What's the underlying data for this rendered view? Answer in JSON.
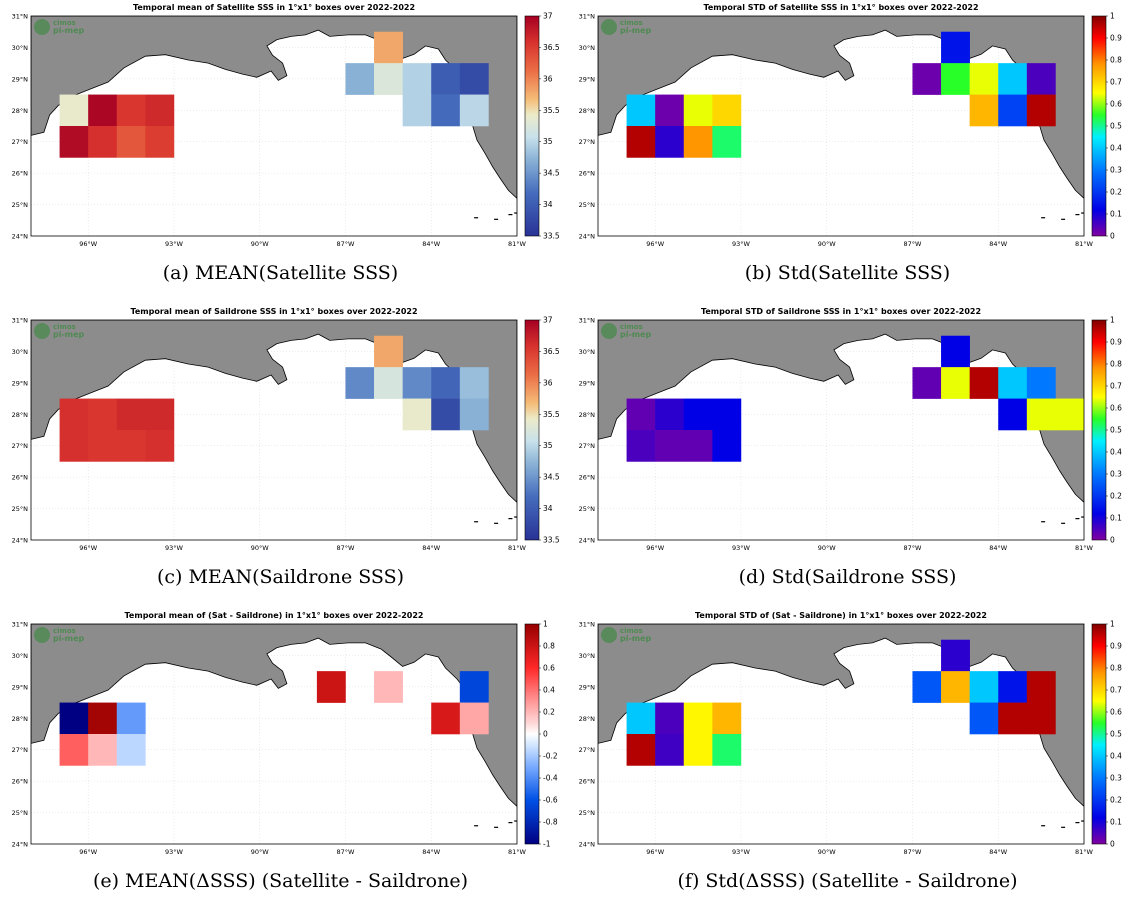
{
  "figure": {
    "logo_line1": "cimos",
    "logo_line2": "pi-mep"
  },
  "chart_data": [
    {
      "type": "heatmap",
      "panel": "a",
      "title": "Temporal mean of Satellite SSS in 1°x1° boxes over 2022-2022",
      "caption": "(a) MEAN(Satellite SSS)",
      "colormap": "diverging",
      "clim": [
        33.5,
        37
      ],
      "colorbar_ticks": [
        "37",
        "36.5",
        "36",
        "35.5",
        "35",
        "34.5",
        "34",
        "33.5"
      ],
      "x_ticks": [
        "96°W",
        "93°W",
        "90°W",
        "87°W",
        "84°W",
        "81°W"
      ],
      "y_ticks": [
        "31°N",
        "30°N",
        "29°N",
        "28°N",
        "27°N",
        "26°N",
        "25°N",
        "24°N"
      ],
      "xlim": [
        -98,
        -81
      ],
      "ylim": [
        24,
        31
      ],
      "grid": true,
      "boxes": [
        {
          "lon": -97,
          "lat": 27.5,
          "value": 35.4
        },
        {
          "lon": -96,
          "lat": 27.5,
          "value": 36.95
        },
        {
          "lon": -95,
          "lat": 27.5,
          "value": 36.55
        },
        {
          "lon": -94,
          "lat": 27.5,
          "value": 36.65
        },
        {
          "lon": -97,
          "lat": 26.5,
          "value": 36.9
        },
        {
          "lon": -96,
          "lat": 26.5,
          "value": 36.6
        },
        {
          "lon": -95,
          "lat": 26.5,
          "value": 36.3
        },
        {
          "lon": -94,
          "lat": 26.5,
          "value": 36.5
        },
        {
          "lon": -86,
          "lat": 29.5,
          "value": 35.8
        },
        {
          "lon": -87,
          "lat": 28.5,
          "value": 34.7
        },
        {
          "lon": -86,
          "lat": 28.5,
          "value": 35.25
        },
        {
          "lon": -85,
          "lat": 28.5,
          "value": 34.95
        },
        {
          "lon": -84,
          "lat": 28.5,
          "value": 34.0
        },
        {
          "lon": -83,
          "lat": 28.5,
          "value": 33.8
        },
        {
          "lon": -85,
          "lat": 27.5,
          "value": 34.95
        },
        {
          "lon": -84,
          "lat": 27.5,
          "value": 34.15
        },
        {
          "lon": -83,
          "lat": 27.5,
          "value": 35.0
        }
      ]
    },
    {
      "type": "heatmap",
      "panel": "b",
      "title": "Temporal STD of Satellite SSS in 1°x1° boxes over 2022-2022",
      "caption": "(b) Std(Satellite SSS)",
      "colormap": "jet",
      "clim": [
        0,
        1
      ],
      "colorbar_ticks": [
        "1",
        "0.9",
        "0.8",
        "0.7",
        "0.6",
        "0.5",
        "0.4",
        "0.3",
        "0.2",
        "0.1",
        "0"
      ],
      "x_ticks": [
        "96°W",
        "93°W",
        "90°W",
        "87°W",
        "84°W",
        "81°W"
      ],
      "y_ticks": [
        "31°N",
        "30°N",
        "29°N",
        "28°N",
        "27°N",
        "26°N",
        "25°N",
        "24°N"
      ],
      "xlim": [
        -98,
        -81
      ],
      "ylim": [
        24,
        31
      ],
      "grid": true,
      "boxes": [
        {
          "lon": -97,
          "lat": 27.5,
          "value": 0.4
        },
        {
          "lon": -96,
          "lat": 27.5,
          "value": 0.02
        },
        {
          "lon": -95,
          "lat": 27.5,
          "value": 0.64
        },
        {
          "lon": -94,
          "lat": 27.5,
          "value": 0.7
        },
        {
          "lon": -97,
          "lat": 26.5,
          "value": 0.96
        },
        {
          "lon": -96,
          "lat": 26.5,
          "value": 0.08
        },
        {
          "lon": -95,
          "lat": 26.5,
          "value": 0.78
        },
        {
          "lon": -94,
          "lat": 26.5,
          "value": 0.52
        },
        {
          "lon": -86,
          "lat": 29.5,
          "value": 0.15
        },
        {
          "lon": -87,
          "lat": 28.5,
          "value": 0.02
        },
        {
          "lon": -86,
          "lat": 28.5,
          "value": 0.55
        },
        {
          "lon": -85,
          "lat": 28.5,
          "value": 0.64
        },
        {
          "lon": -84,
          "lat": 28.5,
          "value": 0.4
        },
        {
          "lon": -83,
          "lat": 28.5,
          "value": 0.05
        },
        {
          "lon": -85,
          "lat": 27.5,
          "value": 0.74
        },
        {
          "lon": -84,
          "lat": 27.5,
          "value": 0.22
        },
        {
          "lon": -83,
          "lat": 27.5,
          "value": 0.96
        }
      ]
    },
    {
      "type": "heatmap",
      "panel": "c",
      "title": "Temporal mean of Saildrone SSS in 1°x1° boxes over 2022-2022",
      "caption": "(c) MEAN(Saildrone SSS)",
      "colormap": "diverging",
      "clim": [
        33.5,
        37
      ],
      "colorbar_ticks": [
        "37",
        "36.5",
        "36",
        "35.5",
        "35",
        "34.5",
        "34",
        "33.5"
      ],
      "x_ticks": [
        "96°W",
        "93°W",
        "90°W",
        "87°W",
        "84°W",
        "81°W"
      ],
      "y_ticks": [
        "31°N",
        "30°N",
        "29°N",
        "28°N",
        "27°N",
        "26°N",
        "25°N",
        "24°N"
      ],
      "xlim": [
        -98,
        -81
      ],
      "ylim": [
        24,
        31
      ],
      "grid": true,
      "boxes": [
        {
          "lon": -97,
          "lat": 27.5,
          "value": 36.6
        },
        {
          "lon": -96,
          "lat": 27.5,
          "value": 36.55
        },
        {
          "lon": -95,
          "lat": 27.5,
          "value": 36.65
        },
        {
          "lon": -94,
          "lat": 27.5,
          "value": 36.65
        },
        {
          "lon": -97,
          "lat": 26.5,
          "value": 36.6
        },
        {
          "lon": -96,
          "lat": 26.5,
          "value": 36.55
        },
        {
          "lon": -95,
          "lat": 26.5,
          "value": 36.55
        },
        {
          "lon": -94,
          "lat": 26.5,
          "value": 36.6
        },
        {
          "lon": -86,
          "lat": 29.5,
          "value": 35.8
        },
        {
          "lon": -87,
          "lat": 28.5,
          "value": 34.4
        },
        {
          "lon": -86,
          "lat": 28.5,
          "value": 35.2
        },
        {
          "lon": -85,
          "lat": 28.5,
          "value": 34.4
        },
        {
          "lon": -84,
          "lat": 28.5,
          "value": 34.1
        },
        {
          "lon": -83,
          "lat": 28.5,
          "value": 34.8
        },
        {
          "lon": -85,
          "lat": 27.5,
          "value": 35.4
        },
        {
          "lon": -84,
          "lat": 27.5,
          "value": 33.8
        },
        {
          "lon": -83,
          "lat": 27.5,
          "value": 34.7
        }
      ]
    },
    {
      "type": "heatmap",
      "panel": "d",
      "title": "Temporal STD of Saildrone SSS in 1°x1° boxes over 2022-2022",
      "caption": "(d) Std(Saildrone SSS)",
      "colormap": "jet",
      "clim": [
        0,
        1
      ],
      "colorbar_ticks": [
        "1",
        "0.9",
        "0.8",
        "0.7",
        "0.6",
        "0.5",
        "0.4",
        "0.3",
        "0.2",
        "0.1",
        "0"
      ],
      "x_ticks": [
        "96°W",
        "93°W",
        "90°W",
        "87°W",
        "84°W",
        "81°W"
      ],
      "y_ticks": [
        "31°N",
        "30°N",
        "29°N",
        "28°N",
        "27°N",
        "26°N",
        "25°N",
        "24°N"
      ],
      "xlim": [
        -98,
        -81
      ],
      "ylim": [
        24,
        31
      ],
      "grid": true,
      "boxes": [
        {
          "lon": -97,
          "lat": 27.5,
          "value": 0.03
        },
        {
          "lon": -96,
          "lat": 27.5,
          "value": 0.08
        },
        {
          "lon": -95,
          "lat": 27.5,
          "value": 0.12
        },
        {
          "lon": -94,
          "lat": 27.5,
          "value": 0.12
        },
        {
          "lon": -97,
          "lat": 26.5,
          "value": 0.05
        },
        {
          "lon": -96,
          "lat": 26.5,
          "value": 0.03
        },
        {
          "lon": -95,
          "lat": 26.5,
          "value": 0.03
        },
        {
          "lon": -94,
          "lat": 26.5,
          "value": 0.12
        },
        {
          "lon": -86,
          "lat": 29.5,
          "value": 0.12
        },
        {
          "lon": -87,
          "lat": 28.5,
          "value": 0.03
        },
        {
          "lon": -86,
          "lat": 28.5,
          "value": 0.64
        },
        {
          "lon": -85,
          "lat": 28.5,
          "value": 0.96
        },
        {
          "lon": -84,
          "lat": 28.5,
          "value": 0.4
        },
        {
          "lon": -83,
          "lat": 28.5,
          "value": 0.3
        },
        {
          "lon": -84,
          "lat": 27.5,
          "value": 0.12
        },
        {
          "lon": -83,
          "lat": 27.5,
          "value": 0.64
        },
        {
          "lon": -82,
          "lat": 27.5,
          "value": 0.64
        }
      ]
    },
    {
      "type": "heatmap",
      "panel": "e",
      "title": "Temporal mean of (Sat - Saildrone) in 1°x1° boxes over 2022-2022",
      "caption": "(e) MEAN(ΔSSS) (Satellite - Saildrone)",
      "colormap": "bluewhitered",
      "clim": [
        -1,
        1
      ],
      "colorbar_ticks": [
        "1",
        "0.8",
        "0.6",
        "0.4",
        "0.2",
        "0",
        "-0.2",
        "-0.4",
        "-0.6",
        "-0.8",
        "-1"
      ],
      "x_ticks": [
        "96°W",
        "93°W",
        "90°W",
        "87°W",
        "84°W",
        "81°W"
      ],
      "y_ticks": [
        "31°N",
        "30°N",
        "29°N",
        "28°N",
        "27°N",
        "26°N",
        "25°N",
        "24°N"
      ],
      "xlim": [
        -98,
        -81
      ],
      "ylim": [
        24,
        31
      ],
      "grid": true,
      "boxes": [
        {
          "lon": -97,
          "lat": 27.5,
          "value": -1.0
        },
        {
          "lon": -96,
          "lat": 27.5,
          "value": 0.95
        },
        {
          "lon": -95,
          "lat": 27.5,
          "value": -0.35
        },
        {
          "lon": -97,
          "lat": 26.5,
          "value": 0.45
        },
        {
          "lon": -96,
          "lat": 26.5,
          "value": 0.2
        },
        {
          "lon": -95,
          "lat": 26.5,
          "value": -0.15
        },
        {
          "lon": -88,
          "lat": 28.5,
          "value": 0.8
        },
        {
          "lon": -86,
          "lat": 28.5,
          "value": 0.2
        },
        {
          "lon": -83,
          "lat": 28.5,
          "value": -0.65
        },
        {
          "lon": -84,
          "lat": 27.5,
          "value": 0.75
        },
        {
          "lon": -83,
          "lat": 27.5,
          "value": 0.25
        }
      ]
    },
    {
      "type": "heatmap",
      "panel": "f",
      "title": "Temporal STD of (Sat - Saildrone) in 1°x1° boxes over 2022-2022",
      "caption": "(f) Std(ΔSSS) (Satellite - Saildrone)",
      "colormap": "jet",
      "clim": [
        0,
        1
      ],
      "colorbar_ticks": [
        "1",
        "0.9",
        "0.8",
        "0.7",
        "0.6",
        "0.5",
        "0.4",
        "0.3",
        "0.2",
        "0.1",
        "0"
      ],
      "x_ticks": [
        "96°W",
        "93°W",
        "90°W",
        "87°W",
        "84°W",
        "81°W"
      ],
      "y_ticks": [
        "31°N",
        "30°N",
        "29°N",
        "28°N",
        "27°N",
        "26°N",
        "25°N",
        "24°N"
      ],
      "xlim": [
        -98,
        -81
      ],
      "ylim": [
        24,
        31
      ],
      "grid": true,
      "boxes": [
        {
          "lon": -97,
          "lat": 27.5,
          "value": 0.4
        },
        {
          "lon": -96,
          "lat": 27.5,
          "value": 0.05
        },
        {
          "lon": -95,
          "lat": 27.5,
          "value": 0.66
        },
        {
          "lon": -94,
          "lat": 27.5,
          "value": 0.74
        },
        {
          "lon": -97,
          "lat": 26.5,
          "value": 0.96
        },
        {
          "lon": -96,
          "lat": 26.5,
          "value": 0.06
        },
        {
          "lon": -95,
          "lat": 26.5,
          "value": 0.66
        },
        {
          "lon": -94,
          "lat": 26.5,
          "value": 0.52
        },
        {
          "lon": -86,
          "lat": 29.5,
          "value": 0.08
        },
        {
          "lon": -87,
          "lat": 28.5,
          "value": 0.25
        },
        {
          "lon": -86,
          "lat": 28.5,
          "value": 0.74
        },
        {
          "lon": -85,
          "lat": 28.5,
          "value": 0.4
        },
        {
          "lon": -84,
          "lat": 28.5,
          "value": 0.15
        },
        {
          "lon": -83,
          "lat": 28.5,
          "value": 0.96
        },
        {
          "lon": -85,
          "lat": 27.5,
          "value": 0.25
        },
        {
          "lon": -84,
          "lat": 27.5,
          "value": 0.96
        },
        {
          "lon": -83,
          "lat": 27.5,
          "value": 0.96
        }
      ]
    }
  ]
}
